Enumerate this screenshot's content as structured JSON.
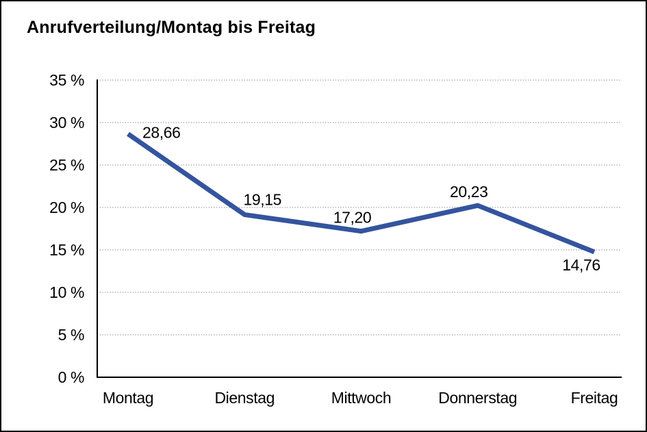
{
  "chart_data": {
    "type": "line",
    "title": "Anrufverteilung/Montag bis Freitag",
    "categories": [
      "Montag",
      "Dienstag",
      "Mittwoch",
      "Donnerstag",
      "Freitag"
    ],
    "values": [
      28.66,
      19.15,
      17.2,
      20.23,
      14.76
    ],
    "point_labels": [
      "28,66",
      "19,15",
      "17,20",
      "20,23",
      "14,76"
    ],
    "label_placements": [
      "right",
      "above-right",
      "above-left",
      "above-left",
      "below-left"
    ],
    "y_ticks": [
      {
        "value": 0,
        "label": "0 %"
      },
      {
        "value": 5,
        "label": "5 %"
      },
      {
        "value": 10,
        "label": "10 %"
      },
      {
        "value": 15,
        "label": "15 %"
      },
      {
        "value": 20,
        "label": "20 %"
      },
      {
        "value": 25,
        "label": "25 %"
      },
      {
        "value": 30,
        "label": "30 %"
      },
      {
        "value": 35,
        "label": "35 %"
      }
    ],
    "ylim": [
      0,
      35
    ],
    "xlabel": "",
    "ylabel": "",
    "legend": "none",
    "grid": "horizontal-dotted",
    "line_color": "#34549E",
    "text_color": "#000000",
    "grid_color": "#7F7F7F",
    "axis_color": "#000000",
    "background_color": "#FFFFFF"
  }
}
